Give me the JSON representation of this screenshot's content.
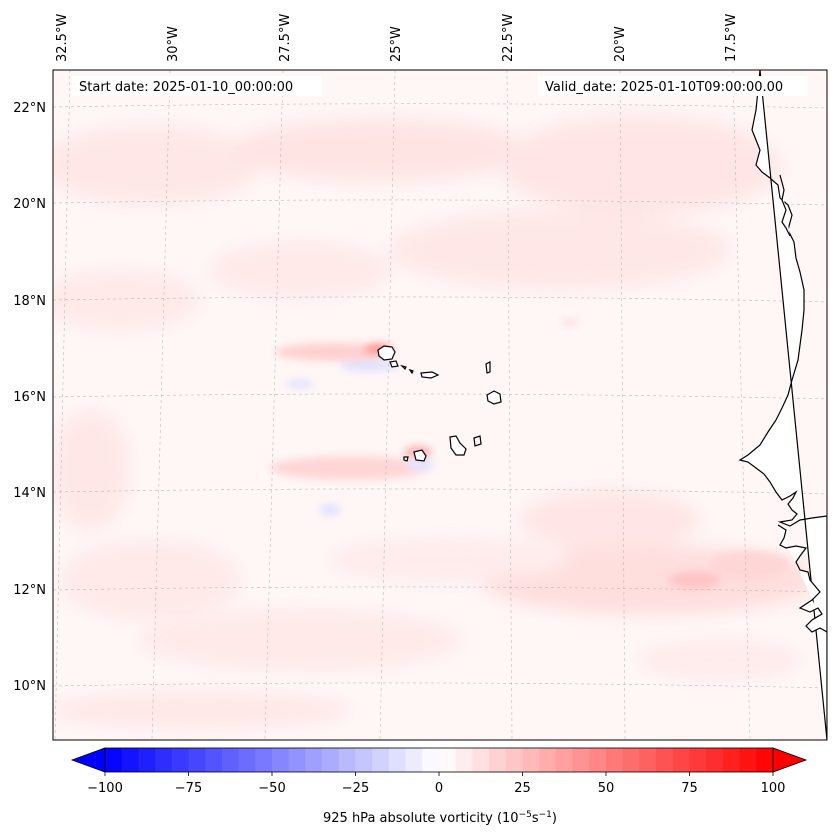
{
  "header": {
    "start_date": "Start date: 2025-01-10_00:00:00",
    "valid_date": "Valid_date: 2025-01-10T09:00:00.00"
  },
  "lon_labels": [
    "32.5°W",
    "30°W",
    "27.5°W",
    "25°W",
    "22.5°W",
    "20°W",
    "17.5°W"
  ],
  "lat_labels": [
    "22°N",
    "20°N",
    "18°N",
    "16°N",
    "14°N",
    "12°N",
    "10°N"
  ],
  "colorbar": {
    "label_main": "925 hPa absolute vorticity (10",
    "label_exp1": "−5",
    "label_mid": "s",
    "label_exp2": "−1",
    "label_end": ")",
    "ticks": [
      "−100",
      "−75",
      "−50",
      "−25",
      "0",
      "25",
      "50",
      "75",
      "100"
    ],
    "min": -100,
    "max": 100,
    "levels": 40,
    "low_color": "#0000ff",
    "mid_color": "#ffffff",
    "high_color": "#ff0000"
  },
  "colors": {
    "land": "#ffffff",
    "coast": "#000000",
    "grid": "#b0b0b0"
  }
}
